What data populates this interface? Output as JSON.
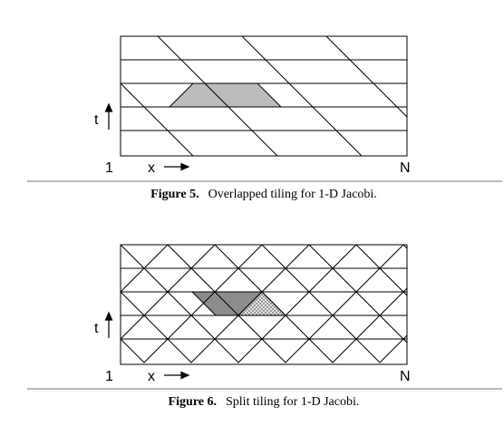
{
  "figure5": {
    "caption_label": "Figure 5.",
    "caption_text": "Overlapped tiling for 1-D Jacobi.",
    "axis_t": "t",
    "axis_x": "x",
    "start_label": "1",
    "end_label": "N",
    "fill_color": "#bcbcbc"
  },
  "figure6": {
    "caption_label": "Figure 6.",
    "caption_text": "Split tiling for 1-D Jacobi.",
    "axis_t": "t",
    "axis_x": "x",
    "start_label": "1",
    "end_label": "N",
    "fill_dark": "#8c8c8c",
    "fill_dotted": "#e2e2e2"
  }
}
